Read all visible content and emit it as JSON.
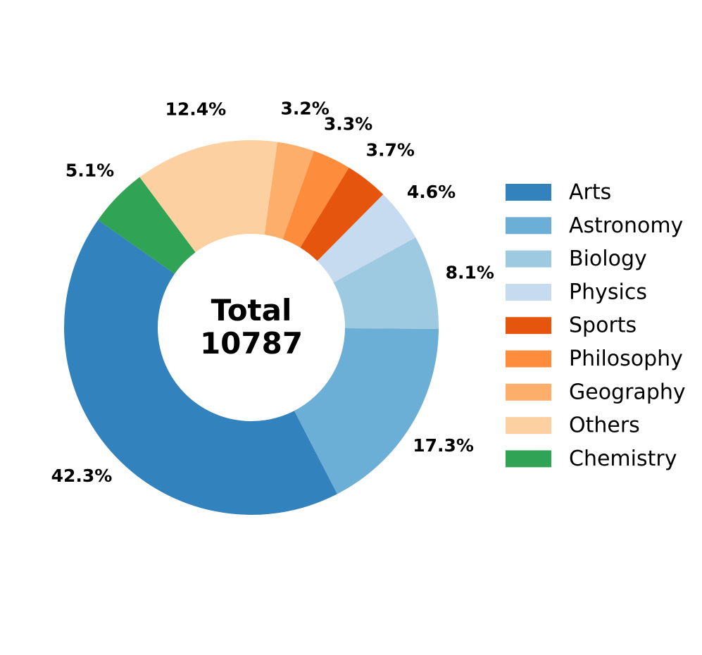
{
  "chart_data": {
    "type": "pie",
    "variant": "donut",
    "center_label": {
      "line1": "Total",
      "line2": "10787"
    },
    "total": 10787,
    "start_angle_deg": 145,
    "direction": "counterclockwise",
    "slices": [
      {
        "name": "Arts",
        "percent": 42.3,
        "label": "42.3%",
        "color": "#3182bd"
      },
      {
        "name": "Astronomy",
        "percent": 17.3,
        "label": "17.3%",
        "color": "#6baed6"
      },
      {
        "name": "Biology",
        "percent": 8.1,
        "label": "8.1%",
        "color": "#9ecae1"
      },
      {
        "name": "Physics",
        "percent": 4.6,
        "label": "4.6%",
        "color": "#c6dbef"
      },
      {
        "name": "Sports",
        "percent": 3.7,
        "label": "3.7%",
        "color": "#e6550d"
      },
      {
        "name": "Philosophy",
        "percent": 3.3,
        "label": "3.3%",
        "color": "#fd8d3c"
      },
      {
        "name": "Geography",
        "percent": 3.2,
        "label": "3.2%",
        "color": "#fdae6b"
      },
      {
        "name": "Others",
        "percent": 12.4,
        "label": "12.4%",
        "color": "#fdd0a2"
      },
      {
        "name": "Chemistry",
        "percent": 5.1,
        "label": "5.1%",
        "color": "#31a354"
      }
    ],
    "legend_position": "right"
  }
}
